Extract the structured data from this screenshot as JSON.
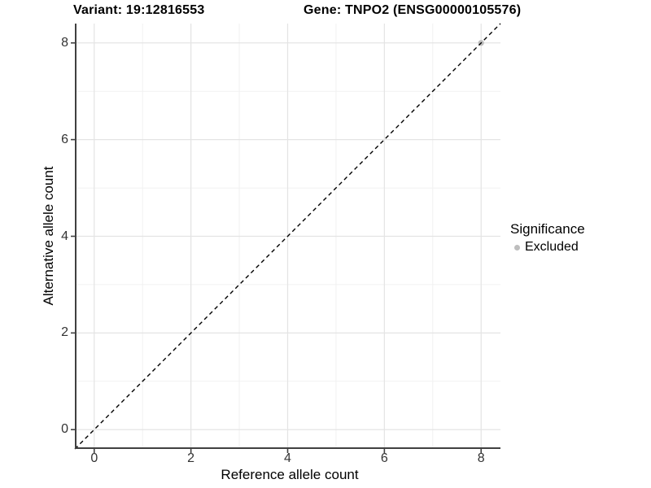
{
  "style": {
    "background": "#ffffff",
    "grid_major_color": "#e4e4e4",
    "grid_minor_color": "#f1f1f1",
    "axis_line_color": "#404040",
    "tick_label_color": "#333333",
    "identity_line_color": "#000000",
    "excluded_color": "#bebebe"
  },
  "chart_data": {
    "type": "scatter",
    "title_parts": {
      "variant": "Variant: 19:12816553",
      "gene": "Gene: TNPO2 (ENSG00000105576)"
    },
    "xlabel": "Reference allele count",
    "ylabel": "Alternative allele count",
    "xlim": [
      -0.4,
      8.4
    ],
    "ylim": [
      -0.4,
      8.4
    ],
    "x_ticks": [
      0,
      2,
      4,
      6,
      8
    ],
    "y_ticks": [
      0,
      2,
      4,
      6,
      8
    ],
    "x_minor_ticks": [
      1,
      3,
      5,
      7
    ],
    "y_minor_ticks": [
      1,
      3,
      5,
      7
    ],
    "grid": true,
    "identity_line": {
      "style": "dashed",
      "slope": 1,
      "intercept": 0
    },
    "series": [
      {
        "name": "Excluded",
        "color": "#bebebe",
        "points": [
          {
            "x": 8,
            "y": 8
          }
        ]
      }
    ],
    "legend": {
      "title": "Significance",
      "position": "right",
      "entries": [
        {
          "label": "Excluded",
          "color": "#bebebe"
        }
      ]
    }
  }
}
